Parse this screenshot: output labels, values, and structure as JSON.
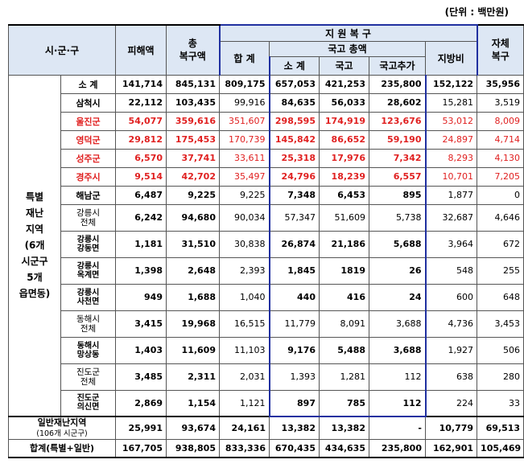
{
  "unit_label": "(단위 : 백만원)",
  "headers": {
    "region": "시·군·구",
    "damage": "피해액",
    "total_recovery_line1": "총",
    "total_recovery_line2": "복구액",
    "support": "지 원 복 구",
    "sum": "합 계",
    "national_total": "국고 총액",
    "subtotal": "소 계",
    "national": "국고",
    "national_extra": "국고추가",
    "local": "지방비",
    "self_line1": "자체",
    "self_line2": "복구"
  },
  "special_group_label": "특별\n재난\n지역\n(6개\n시군구\n5개\n읍면동)",
  "rows": [
    {
      "name": "소  계",
      "damage": "141,714",
      "total": "845,131",
      "sum": "809,175",
      "subtotal": "657,053",
      "national": "421,253",
      "extra": "235,800",
      "local": "152,122",
      "self": "35,956"
    },
    {
      "name": "삼척시",
      "damage": "22,112",
      "total": "103,435",
      "sum": "99,916",
      "subtotal": "84,635",
      "national": "56,033",
      "extra": "28,602",
      "local": "15,281",
      "self": "3,519"
    },
    {
      "name": "울진군",
      "damage": "54,077",
      "total": "359,616",
      "sum": "351,607",
      "subtotal": "298,595",
      "national": "174,919",
      "extra": "123,676",
      "local": "53,012",
      "self": "8,009"
    },
    {
      "name": "영덕군",
      "damage": "29,812",
      "total": "175,453",
      "sum": "170,739",
      "subtotal": "145,842",
      "national": "86,652",
      "extra": "59,190",
      "local": "24,897",
      "self": "4,714"
    },
    {
      "name": "성주군",
      "damage": "6,570",
      "total": "37,741",
      "sum": "33,611",
      "subtotal": "25,318",
      "national": "17,976",
      "extra": "7,342",
      "local": "8,293",
      "self": "4,130"
    },
    {
      "name": "경주시",
      "damage": "9,514",
      "total": "42,702",
      "sum": "35,497",
      "subtotal": "24,796",
      "national": "18,239",
      "extra": "6,557",
      "local": "10,701",
      "self": "7,205"
    },
    {
      "name": "해남군",
      "damage": "6,487",
      "total": "9,225",
      "sum": "9,225",
      "subtotal": "7,348",
      "national": "6,453",
      "extra": "895",
      "local": "1,877",
      "self": "0"
    },
    {
      "name": "강릉시\n전체",
      "damage": "6,242",
      "total": "94,680",
      "sum": "90,034",
      "subtotal": "57,347",
      "national": "51,609",
      "extra": "5,738",
      "local": "32,687",
      "self": "4,646"
    },
    {
      "name": "강릉시\n강동면",
      "damage": "1,181",
      "total": "31,510",
      "sum": "30,838",
      "subtotal": "26,874",
      "national": "21,186",
      "extra": "5,688",
      "local": "3,964",
      "self": "672"
    },
    {
      "name": "강릉시\n옥계면",
      "damage": "1,398",
      "total": "2,648",
      "sum": "2,393",
      "subtotal": "1,845",
      "national": "1819",
      "extra": "26",
      "local": "548",
      "self": "255"
    },
    {
      "name": "강릉시\n사천면",
      "damage": "949",
      "total": "1,688",
      "sum": "1,040",
      "subtotal": "440",
      "national": "416",
      "extra": "24",
      "local": "600",
      "self": "648"
    },
    {
      "name": "동해시\n전체",
      "damage": "3,415",
      "total": "19,968",
      "sum": "16,515",
      "subtotal": "11,779",
      "national": "8,091",
      "extra": "3,688",
      "local": "4,736",
      "self": "3,453"
    },
    {
      "name": "동해시\n망상동",
      "damage": "1,403",
      "total": "11,609",
      "sum": "11,103",
      "subtotal": "9,176",
      "national": "5,488",
      "extra": "3,688",
      "local": "1,927",
      "self": "506"
    },
    {
      "name": "진도군\n전체",
      "damage": "3,485",
      "total": "2,311",
      "sum": "2,031",
      "subtotal": "1,393",
      "national": "1,281",
      "extra": "112",
      "local": "638",
      "self": "280"
    },
    {
      "name": "진도군\n의신면",
      "damage": "2,869",
      "total": "1,154",
      "sum": "1,121",
      "subtotal": "897",
      "national": "785",
      "extra": "112",
      "local": "224",
      "self": "33"
    }
  ],
  "general": {
    "name_line1": "일반재난지역",
    "name_line2": "(106개 시군구)",
    "damage": "25,991",
    "total": "93,674",
    "sum": "24,161",
    "subtotal": "13,382",
    "national": "13,382",
    "extra": "-",
    "local": "10,779",
    "self": "69,513"
  },
  "grand": {
    "name": "합계(특별+일반)",
    "damage": "167,705",
    "total": "938,805",
    "sum": "833,336",
    "subtotal": "670,435",
    "national": "434,635",
    "extra": "235,800",
    "local": "162,901",
    "self": "105,469"
  },
  "colors": {
    "header_bg": "#dde7f4",
    "highlight_red": "#e02020",
    "box_blue": "#2030a0"
  }
}
